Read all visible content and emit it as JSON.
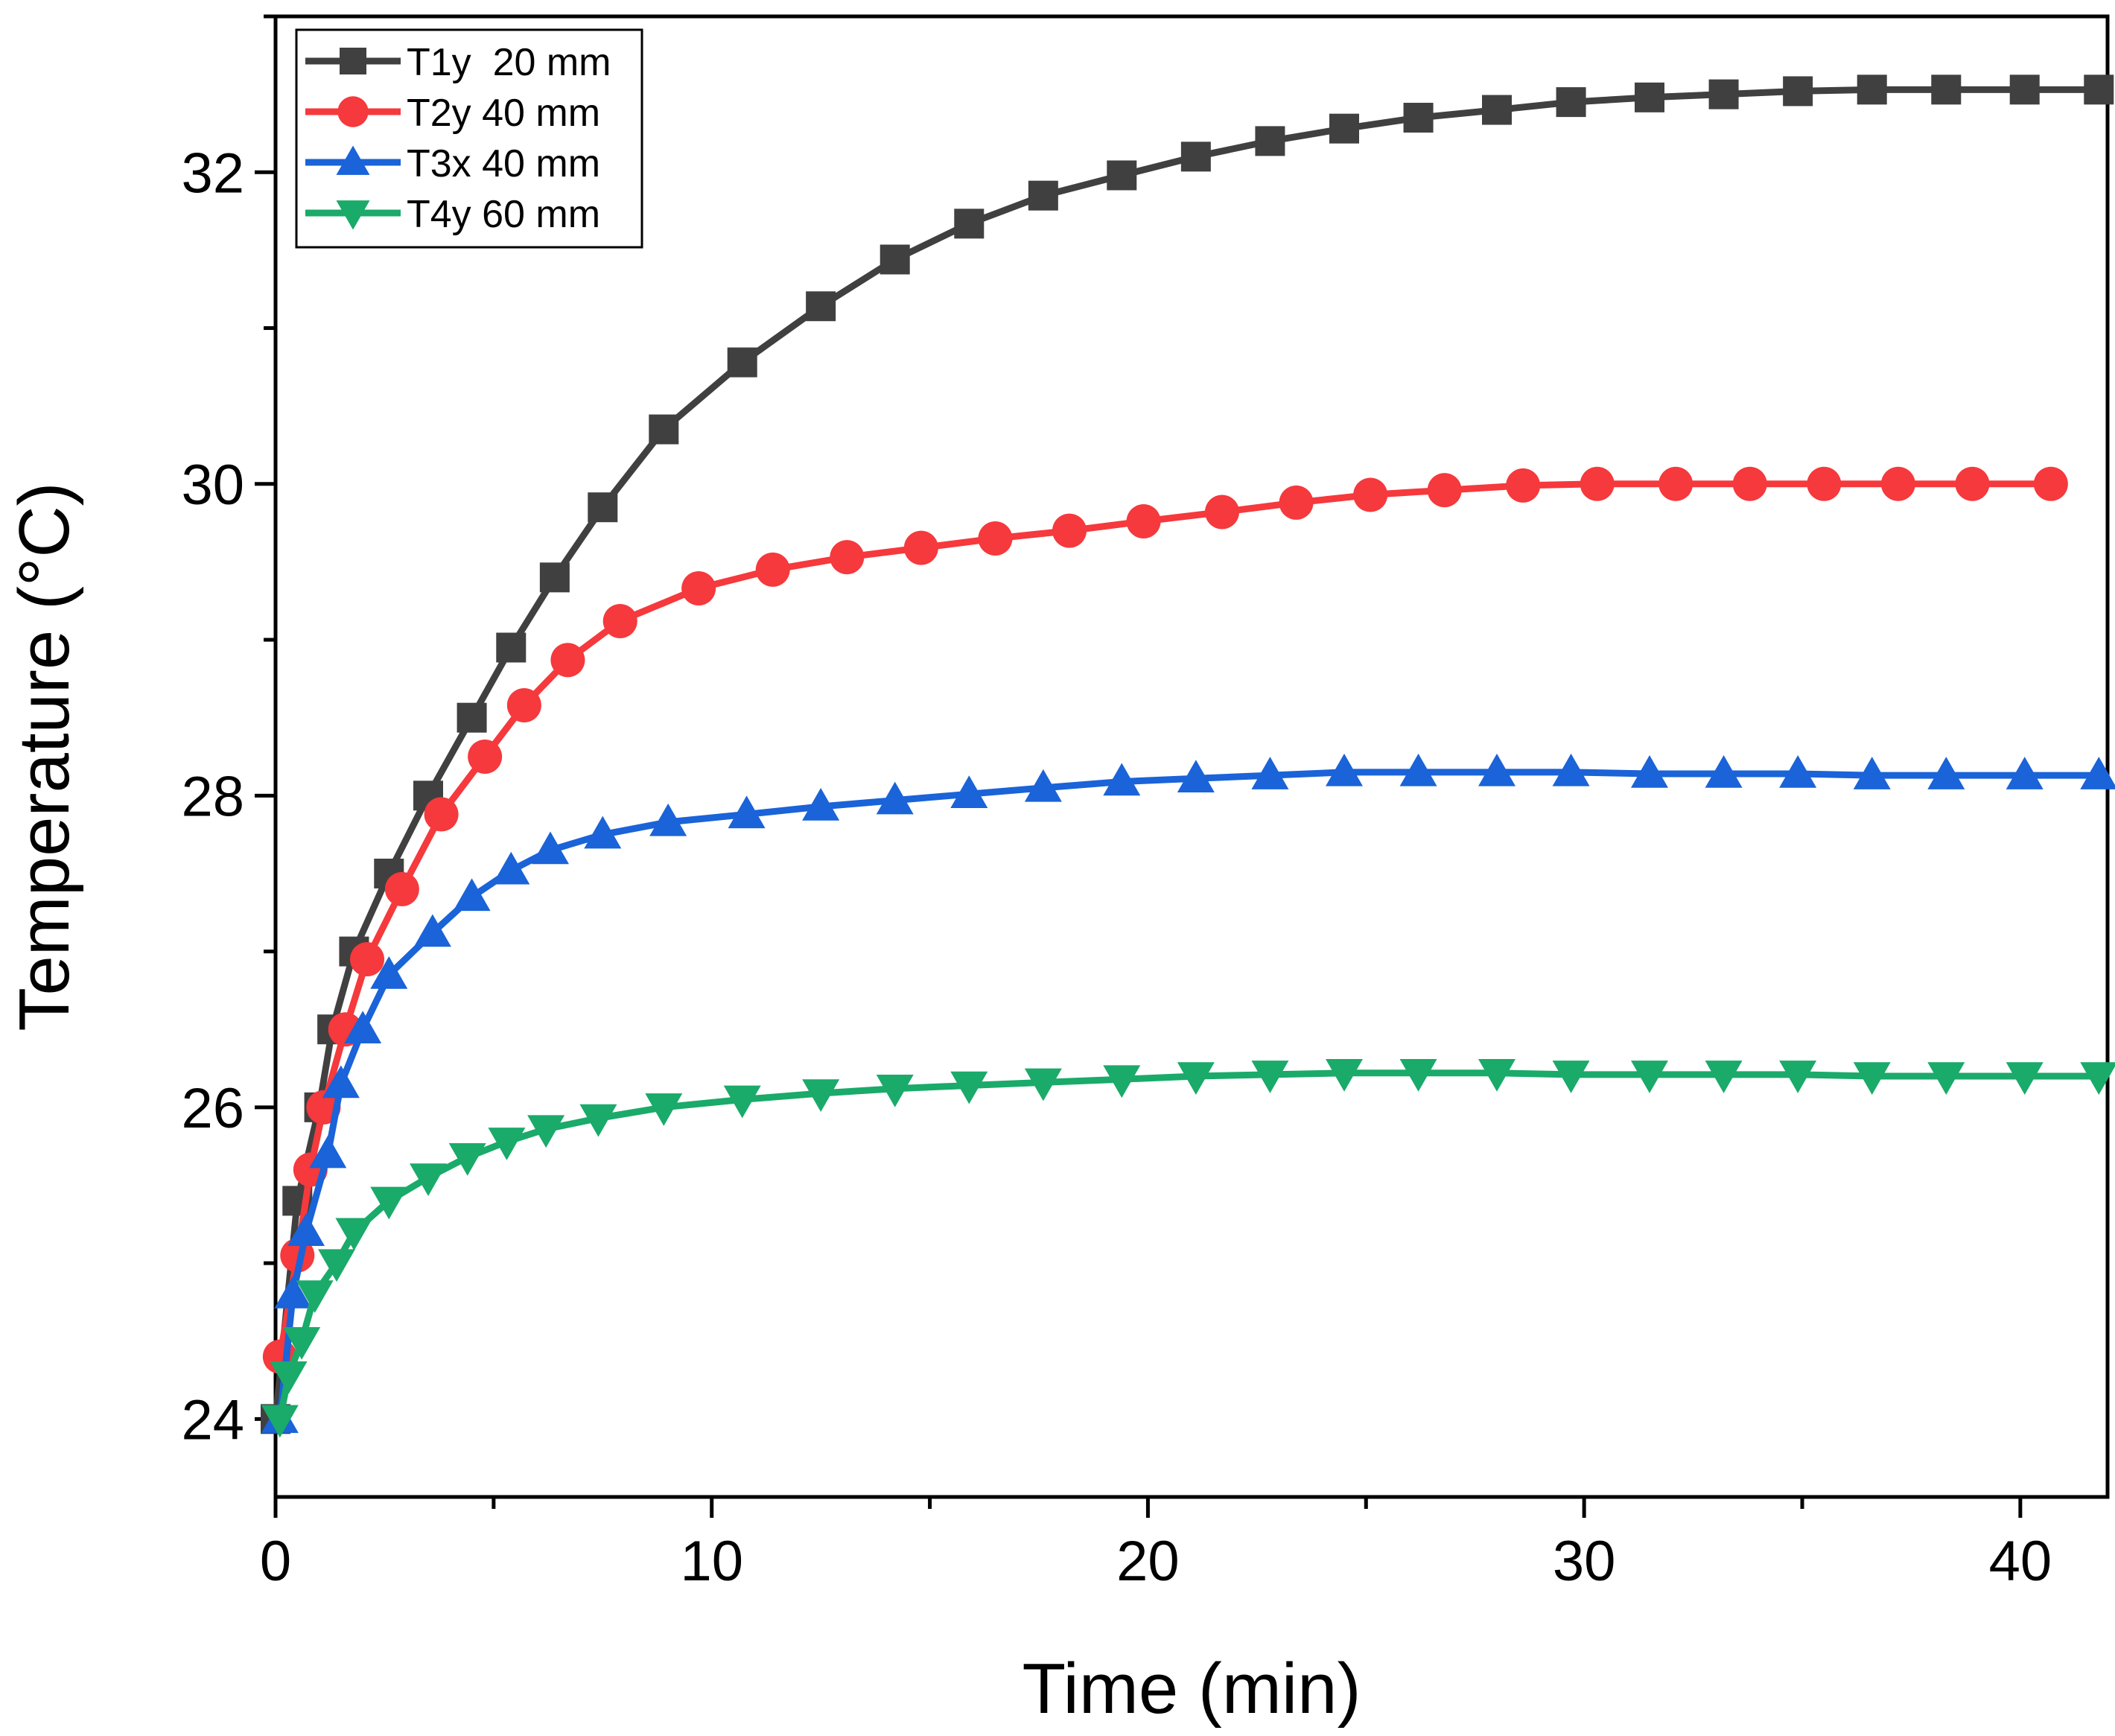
{
  "chart_data": {
    "type": "line",
    "title": "",
    "xlabel": "Time (min)",
    "ylabel": "Temperature (°C)",
    "xlim": [
      0,
      42
    ],
    "ylim": [
      23.5,
      33
    ],
    "xticks": [
      0,
      10,
      20,
      30,
      40
    ],
    "xtick_labels": [
      "0",
      "10",
      "20",
      "30",
      "40"
    ],
    "yticks": [
      24,
      26,
      28,
      30,
      32
    ],
    "ytick_labels": [
      "24",
      "26",
      "28",
      "30",
      "32"
    ],
    "legend_position": "top-left",
    "series": [
      {
        "name": "T1y  20 mm",
        "color": "#404040",
        "marker": "square",
        "x": [
          0,
          0.5,
          1.0,
          1.3,
          1.8,
          2.6,
          3.5,
          4.5,
          5.4,
          6.4,
          7.5,
          8.9,
          10.7,
          12.5,
          14.2,
          15.9,
          17.6,
          19.4,
          21.1,
          22.8,
          24.5,
          26.2,
          28.0,
          29.7,
          31.5,
          33.2,
          34.9,
          36.6,
          38.3,
          40.1,
          41.8
        ],
        "y": [
          24.0,
          25.4,
          26.0,
          26.5,
          27.0,
          27.5,
          28.0,
          28.5,
          28.95,
          29.4,
          29.85,
          30.35,
          30.78,
          31.14,
          31.44,
          31.67,
          31.85,
          31.98,
          32.1,
          32.2,
          32.28,
          32.35,
          32.4,
          32.45,
          32.48,
          32.5,
          32.52,
          32.53,
          32.53,
          32.53,
          32.53
        ]
      },
      {
        "name": "T2y 40 mm",
        "color": "#f5393c",
        "marker": "circle",
        "x": [
          0.1,
          0.5,
          0.8,
          1.1,
          1.6,
          2.1,
          2.9,
          3.8,
          4.8,
          5.7,
          6.7,
          7.9,
          9.7,
          11.4,
          13.1,
          14.8,
          16.5,
          18.2,
          19.9,
          21.7,
          23.4,
          25.1,
          26.8,
          28.6,
          30.3,
          32.1,
          33.8,
          35.5,
          37.2,
          38.9,
          40.7
        ],
        "y": [
          24.4,
          25.05,
          25.6,
          26.0,
          26.5,
          26.95,
          27.4,
          27.88,
          28.25,
          28.58,
          28.87,
          29.12,
          29.33,
          29.45,
          29.53,
          29.59,
          29.65,
          29.7,
          29.76,
          29.82,
          29.88,
          29.93,
          29.96,
          29.99,
          30.0,
          30.0,
          30.0,
          30.0,
          30.0,
          30.0,
          30.0
        ]
      },
      {
        "name": "T3x 40 mm",
        "color": "#1a63d8",
        "marker": "triangle-up",
        "x": [
          0.1,
          0.4,
          0.7,
          1.2,
          1.5,
          2.0,
          2.6,
          3.6,
          4.5,
          5.4,
          6.3,
          7.5,
          9.0,
          10.8,
          12.5,
          14.2,
          15.9,
          17.6,
          19.4,
          21.1,
          22.8,
          24.5,
          26.2,
          28.0,
          29.7,
          31.5,
          33.2,
          34.9,
          36.6,
          38.3,
          40.1,
          41.8
        ],
        "y": [
          24.0,
          24.8,
          25.2,
          25.7,
          26.15,
          26.5,
          26.85,
          27.12,
          27.35,
          27.52,
          27.65,
          27.75,
          27.83,
          27.88,
          27.93,
          27.97,
          28.01,
          28.05,
          28.09,
          28.11,
          28.13,
          28.15,
          28.15,
          28.15,
          28.15,
          28.14,
          28.14,
          28.14,
          28.13,
          28.13,
          28.13,
          28.13
        ]
      },
      {
        "name": "T4y 60 mm",
        "color": "#1aaa6a",
        "marker": "triangle-down",
        "x": [
          0.1,
          0.3,
          0.6,
          0.9,
          1.4,
          1.8,
          2.6,
          3.5,
          4.4,
          5.3,
          6.2,
          7.4,
          8.9,
          10.7,
          12.5,
          14.2,
          15.9,
          17.6,
          19.4,
          21.1,
          22.8,
          24.5,
          26.2,
          28.0,
          29.7,
          31.5,
          33.2,
          34.9,
          36.6,
          38.3,
          40.1,
          41.8
        ],
        "y": [
          24.0,
          24.28,
          24.5,
          24.8,
          25.0,
          25.2,
          25.4,
          25.55,
          25.68,
          25.78,
          25.86,
          25.93,
          26.0,
          26.05,
          26.09,
          26.12,
          26.14,
          26.16,
          26.18,
          26.2,
          26.21,
          26.22,
          26.22,
          26.22,
          26.21,
          26.21,
          26.21,
          26.21,
          26.2,
          26.2,
          26.2,
          26.2
        ]
      }
    ]
  }
}
